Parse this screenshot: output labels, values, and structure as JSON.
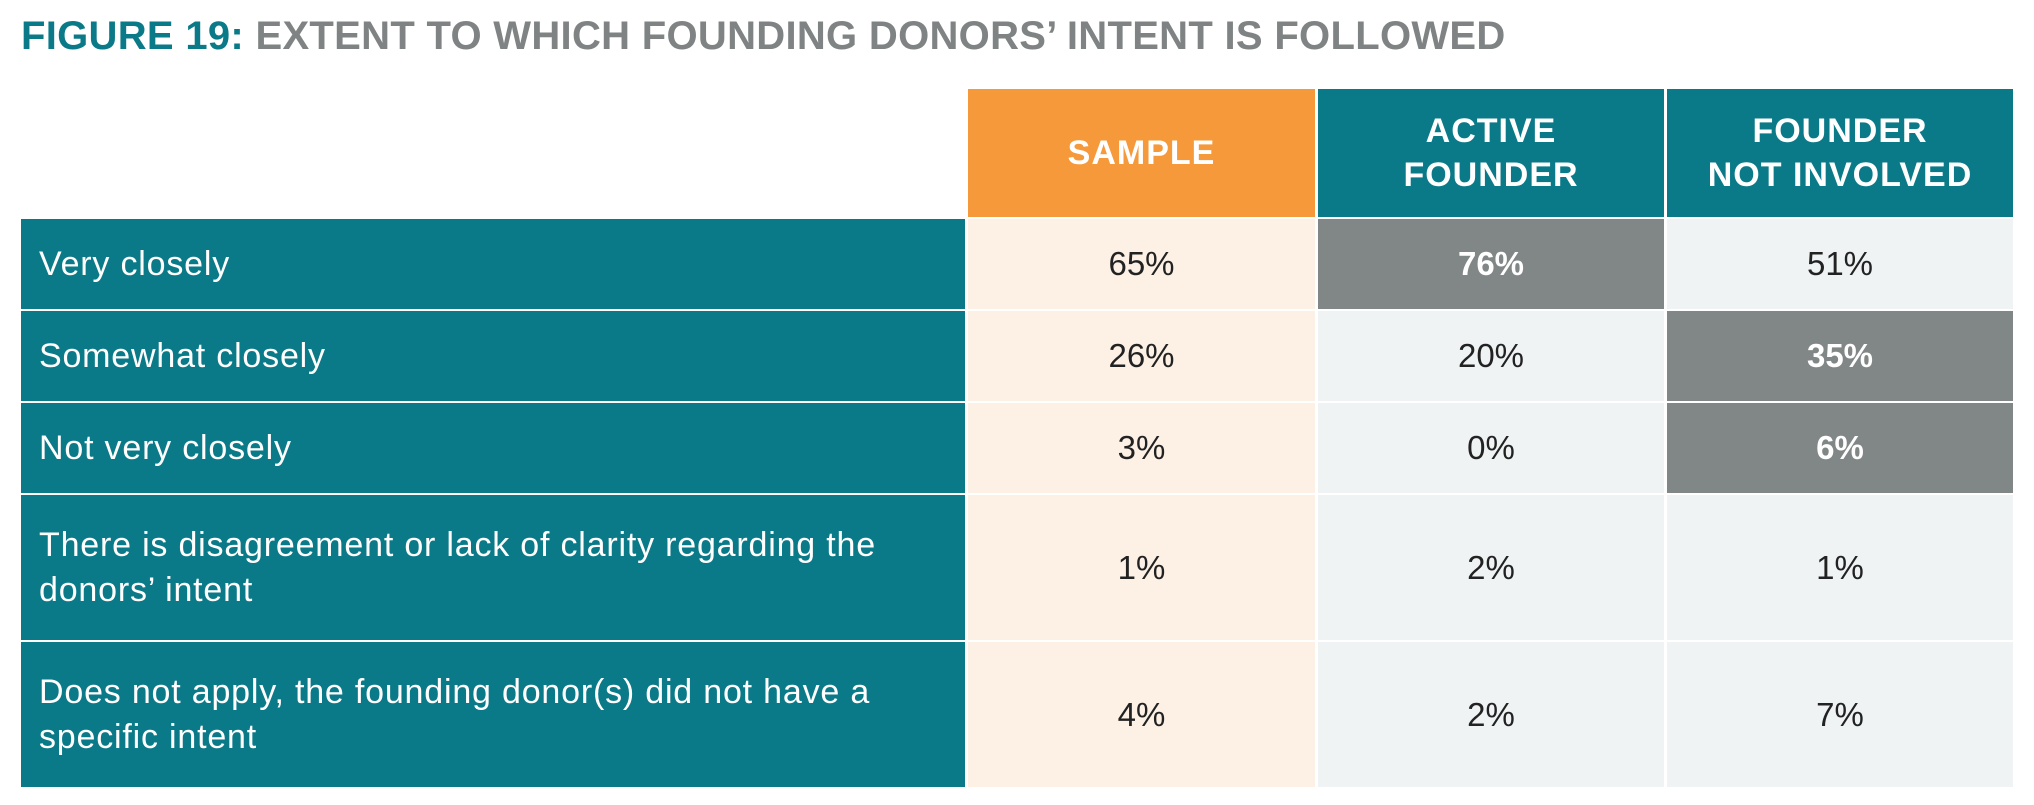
{
  "title": {
    "figure_label": "FIGURE 19:",
    "text": "EXTENT TO WHICH FOUNDING DONORS’ INTENT IS FOLLOWED"
  },
  "columns": [
    "SAMPLE",
    "ACTIVE\nFOUNDER",
    "FOUNDER\nNOT INVOLVED"
  ],
  "rows": [
    {
      "label": "Very closely",
      "values": [
        "65%",
        "76%",
        "51%"
      ],
      "highlight": [
        false,
        true,
        false
      ]
    },
    {
      "label": "Somewhat closely",
      "values": [
        "26%",
        "20%",
        "35%"
      ],
      "highlight": [
        false,
        false,
        true
      ]
    },
    {
      "label": "Not very closely",
      "values": [
        "3%",
        "0%",
        "6%"
      ],
      "highlight": [
        false,
        false,
        true
      ]
    },
    {
      "label": "There is disagreement or lack of clarity regarding the donors’ intent",
      "values": [
        "1%",
        "2%",
        "1%"
      ],
      "highlight": [
        false,
        false,
        false
      ]
    },
    {
      "label": "Does not apply, the founding donor(s) did not have a specific intent",
      "values": [
        "4%",
        "2%",
        "7%"
      ],
      "highlight": [
        false,
        false,
        false
      ]
    }
  ],
  "colors": {
    "teal": "#0b7a88",
    "orange": "#f5993a",
    "gray_title": "#7f8383",
    "highlight_gray": "#818686",
    "sample_bg": "#fdf1e6",
    "light_bg": "#eff3f4"
  }
}
